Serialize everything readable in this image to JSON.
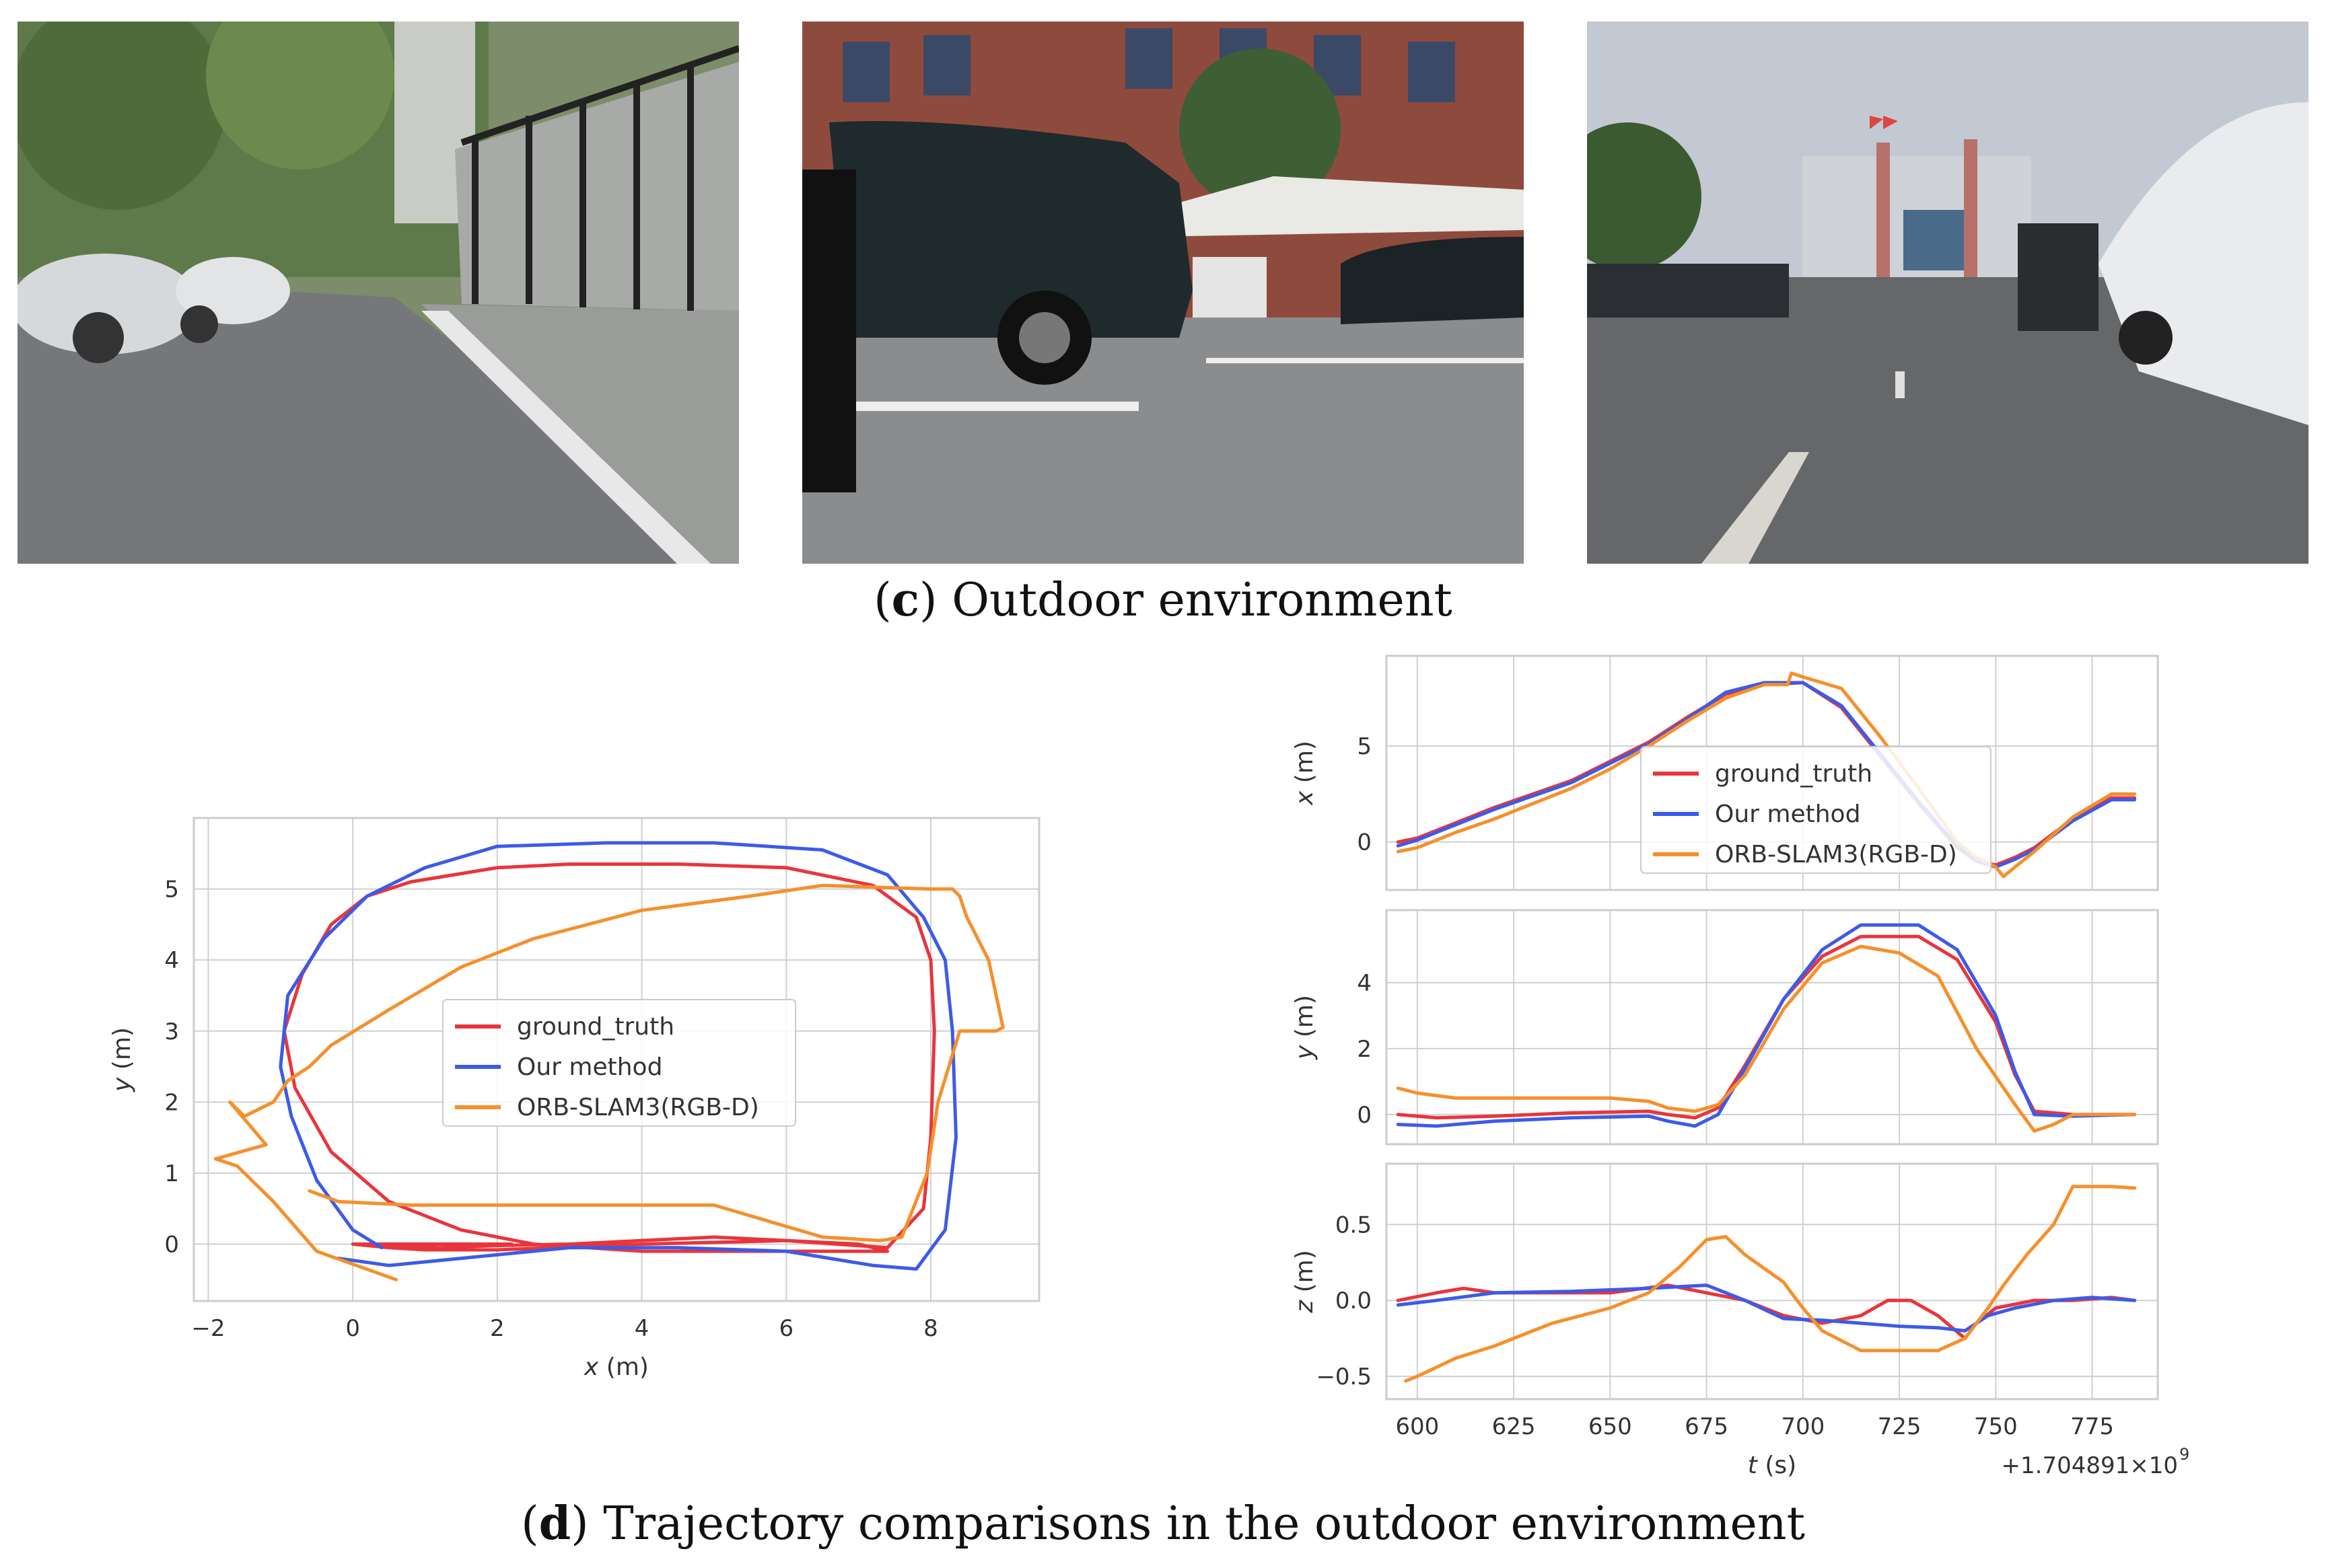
{
  "captions": {
    "c_letter": "c",
    "c_text": " Outdoor environment",
    "d_letter": "d",
    "d_text": " Trajectory comparisons in the outdoor environment"
  },
  "photos": [
    {
      "name": "outdoor-photo-sidewalk",
      "scene": "sidewalk with railing and parked cars"
    },
    {
      "name": "outdoor-photo-parking",
      "scene": "parked van in front of red brick building"
    },
    {
      "name": "outdoor-photo-road",
      "scene": "road towards building with flags, cars parked"
    }
  ],
  "colors": {
    "ground_truth": "#e8353c",
    "our_method": "#3c5be8",
    "orb_slam3": "#f5902c",
    "grid": "#d0d0d0",
    "frame": "#cccccc"
  },
  "chart_data": [
    {
      "type": "line",
      "id": "xy",
      "xlabel": "x (m)",
      "ylabel": "y (m)",
      "xlim": [
        -2.2,
        9.5
      ],
      "ylim": [
        -0.8,
        6.0
      ],
      "xticks": [
        -2,
        0,
        2,
        4,
        6,
        8
      ],
      "yticks": [
        0,
        1,
        2,
        3,
        4,
        5
      ],
      "grid": true,
      "legend_position": "center",
      "series": [
        {
          "name": "ground_truth",
          "key": "ground_truth",
          "x": [
            0.0,
            0.5,
            1.0,
            2.0,
            4.0,
            6.0,
            7.4,
            7.9,
            8.0,
            8.05,
            8.0,
            7.8,
            7.2,
            6.0,
            4.5,
            3.0,
            2.0,
            0.8,
            0.2,
            -0.3,
            -0.7,
            -0.95,
            -0.8,
            -0.3,
            0.5,
            1.5,
            2.5,
            4.0,
            5.5,
            6.8,
            7.4,
            7.0,
            6.0,
            5.0,
            4.0,
            3.0,
            2.0,
            1.2,
            0.5,
            0.0,
            2.2
          ],
          "y": [
            0.0,
            -0.05,
            -0.08,
            -0.08,
            0.0,
            0.05,
            -0.05,
            0.5,
            1.5,
            3.0,
            4.0,
            4.6,
            5.05,
            5.3,
            5.35,
            5.35,
            5.3,
            5.1,
            4.9,
            4.5,
            3.8,
            3.0,
            2.2,
            1.3,
            0.6,
            0.2,
            0.0,
            -0.1,
            -0.1,
            -0.1,
            -0.1,
            0.0,
            0.05,
            0.1,
            0.05,
            0.0,
            -0.02,
            -0.05,
            -0.03,
            0.0,
            0.0
          ]
        },
        {
          "name": "Our method",
          "key": "our_method",
          "x": [
            -0.2,
            0.5,
            1.5,
            3.0,
            4.5,
            6.0,
            7.2,
            7.8,
            8.2,
            8.35,
            8.3,
            8.2,
            7.9,
            7.4,
            6.5,
            5.0,
            3.5,
            2.0,
            1.0,
            0.2,
            -0.4,
            -0.9,
            -1.0,
            -0.85,
            -0.5,
            0.0,
            0.4
          ],
          "y": [
            -0.2,
            -0.3,
            -0.2,
            -0.05,
            -0.05,
            -0.1,
            -0.3,
            -0.35,
            0.2,
            1.5,
            3.0,
            4.0,
            4.6,
            5.2,
            5.55,
            5.65,
            5.65,
            5.6,
            5.3,
            4.9,
            4.3,
            3.5,
            2.5,
            1.8,
            0.9,
            0.2,
            -0.05
          ]
        },
        {
          "name": "ORB-SLAM3(RGB-D)",
          "key": "orb_slam3",
          "x": [
            -0.6,
            -0.2,
            0.8,
            1.5,
            3.0,
            5.0,
            6.5,
            7.3,
            7.6,
            7.95,
            8.1,
            8.4,
            8.9,
            9.0,
            8.8,
            8.5,
            8.4,
            8.3,
            8.0,
            7.4,
            6.5,
            5.5,
            4.0,
            2.5,
            1.5,
            0.5,
            -0.3,
            -0.6,
            -0.9,
            -1.1,
            -1.5,
            -1.7,
            -1.2,
            -1.9,
            -1.6,
            -1.1,
            -0.5,
            0.6
          ],
          "y": [
            0.75,
            0.6,
            0.55,
            0.55,
            0.55,
            0.55,
            0.1,
            0.05,
            0.1,
            1.0,
            2.0,
            3.0,
            3.0,
            3.05,
            4.0,
            4.6,
            4.9,
            5.0,
            5.0,
            5.02,
            5.05,
            4.9,
            4.7,
            4.3,
            3.9,
            3.3,
            2.8,
            2.5,
            2.3,
            2.0,
            1.8,
            2.0,
            1.4,
            1.2,
            1.1,
            0.6,
            -0.1,
            -0.5
          ]
        }
      ]
    },
    {
      "type": "line",
      "id": "ts-x",
      "ylabel": "x (m)",
      "xlim": [
        592,
        792
      ],
      "ylim": [
        -2.5,
        9.7
      ],
      "yticks": [
        0,
        5
      ],
      "grid": true,
      "legend_position": "center-right",
      "series": [
        {
          "name": "ground_truth",
          "key": "ground_truth",
          "x": [
            595,
            600,
            610,
            620,
            630,
            640,
            650,
            660,
            670,
            680,
            690,
            700,
            710,
            720,
            730,
            740,
            745,
            750,
            755,
            760,
            770,
            780,
            786
          ],
          "y": [
            0.0,
            0.2,
            1.0,
            1.8,
            2.5,
            3.2,
            4.2,
            5.2,
            6.5,
            7.7,
            8.2,
            8.3,
            7.0,
            4.5,
            2.0,
            -0.3,
            -1.0,
            -1.2,
            -0.8,
            -0.3,
            1.2,
            2.3,
            2.3
          ]
        },
        {
          "name": "Our method",
          "key": "our_method",
          "x": [
            595,
            600,
            610,
            620,
            630,
            640,
            650,
            660,
            670,
            680,
            690,
            700,
            710,
            720,
            730,
            740,
            745,
            750,
            755,
            760,
            770,
            780,
            786
          ],
          "y": [
            -0.2,
            0.1,
            0.9,
            1.7,
            2.4,
            3.1,
            4.1,
            5.1,
            6.4,
            7.8,
            8.3,
            8.3,
            7.1,
            4.6,
            2.1,
            -0.2,
            -1.0,
            -1.3,
            -0.9,
            -0.4,
            1.1,
            2.2,
            2.2
          ]
        },
        {
          "name": "ORB-SLAM3(RGB-D)",
          "key": "orb_slam3",
          "x": [
            595,
            600,
            610,
            620,
            630,
            640,
            650,
            660,
            670,
            680,
            690,
            696,
            697,
            700,
            710,
            720,
            730,
            740,
            745,
            750,
            752,
            755,
            760,
            770,
            780,
            786
          ],
          "y": [
            -0.5,
            -0.3,
            0.5,
            1.2,
            2.0,
            2.8,
            3.8,
            5.0,
            6.3,
            7.5,
            8.2,
            8.2,
            8.8,
            8.6,
            8.0,
            5.5,
            2.8,
            0.0,
            -0.8,
            -1.3,
            -1.8,
            -1.3,
            -0.5,
            1.3,
            2.5,
            2.5
          ]
        }
      ]
    },
    {
      "type": "line",
      "id": "ts-y",
      "ylabel": "y (m)",
      "xlim": [
        592,
        792
      ],
      "ylim": [
        -0.9,
        6.2
      ],
      "yticks": [
        0,
        2,
        4
      ],
      "grid": true,
      "series": [
        {
          "name": "ground_truth",
          "key": "ground_truth",
          "x": [
            595,
            605,
            620,
            640,
            660,
            665,
            672,
            678,
            685,
            695,
            705,
            715,
            730,
            740,
            750,
            755,
            760,
            770,
            786
          ],
          "y": [
            0.0,
            -0.1,
            -0.05,
            0.05,
            0.1,
            0.0,
            -0.1,
            0.2,
            1.5,
            3.5,
            4.8,
            5.4,
            5.4,
            4.7,
            2.8,
            1.2,
            0.1,
            0.0,
            0.0
          ]
        },
        {
          "name": "Our method",
          "key": "our_method",
          "x": [
            595,
            605,
            620,
            640,
            660,
            665,
            672,
            678,
            685,
            695,
            705,
            715,
            730,
            740,
            750,
            755,
            760,
            770,
            786
          ],
          "y": [
            -0.3,
            -0.35,
            -0.2,
            -0.1,
            -0.05,
            -0.2,
            -0.35,
            0.0,
            1.4,
            3.5,
            5.0,
            5.75,
            5.75,
            5.0,
            3.0,
            1.3,
            0.0,
            -0.05,
            0.0
          ]
        },
        {
          "name": "ORB-SLAM3(RGB-D)",
          "key": "orb_slam3",
          "x": [
            595,
            600,
            610,
            630,
            650,
            660,
            665,
            672,
            678,
            685,
            695,
            705,
            715,
            725,
            735,
            745,
            755,
            760,
            765,
            770,
            786
          ],
          "y": [
            0.8,
            0.65,
            0.5,
            0.5,
            0.5,
            0.4,
            0.2,
            0.1,
            0.3,
            1.2,
            3.2,
            4.6,
            5.1,
            4.9,
            4.2,
            2.0,
            0.3,
            -0.5,
            -0.3,
            0.0,
            0.0
          ]
        }
      ]
    },
    {
      "type": "line",
      "id": "ts-z",
      "ylabel": "z (m)",
      "xlabel": "t (s)",
      "offset_label": "+1.704891×10",
      "offset_exp": "9",
      "xlim": [
        592,
        792
      ],
      "ylim": [
        -0.65,
        0.9
      ],
      "xticks": [
        600,
        625,
        650,
        675,
        700,
        725,
        750,
        775
      ],
      "yticks": [
        -0.5,
        0.0,
        0.5
      ],
      "grid": true,
      "series": [
        {
          "name": "ground_truth",
          "key": "ground_truth",
          "x": [
            595,
            605,
            612,
            620,
            635,
            650,
            665,
            675,
            685,
            695,
            705,
            715,
            722,
            728,
            735,
            742,
            745,
            750,
            760,
            770,
            780,
            786
          ],
          "y": [
            0.0,
            0.05,
            0.08,
            0.05,
            0.05,
            0.05,
            0.1,
            0.05,
            0.0,
            -0.1,
            -0.15,
            -0.1,
            0.0,
            0.0,
            -0.1,
            -0.25,
            -0.15,
            -0.05,
            0.0,
            0.0,
            0.02,
            0.0
          ]
        },
        {
          "name": "Our method",
          "key": "our_method",
          "x": [
            595,
            605,
            620,
            640,
            660,
            675,
            685,
            695,
            705,
            715,
            725,
            735,
            742,
            748,
            755,
            765,
            775,
            786
          ],
          "y": [
            -0.03,
            0.0,
            0.05,
            0.06,
            0.08,
            0.1,
            0.0,
            -0.12,
            -0.13,
            -0.15,
            -0.17,
            -0.18,
            -0.2,
            -0.1,
            -0.05,
            0.0,
            0.02,
            0.0
          ]
        },
        {
          "name": "ORB-SLAM3(RGB-D)",
          "key": "orb_slam3",
          "x": [
            597,
            600,
            610,
            620,
            635,
            650,
            660,
            668,
            675,
            680,
            685,
            695,
            697,
            700,
            705,
            715,
            725,
            735,
            742,
            748,
            752,
            758,
            765,
            770,
            780,
            786
          ],
          "y": [
            -0.53,
            -0.5,
            -0.38,
            -0.3,
            -0.15,
            -0.05,
            0.05,
            0.22,
            0.4,
            0.42,
            0.3,
            0.12,
            0.05,
            -0.05,
            -0.2,
            -0.33,
            -0.33,
            -0.33,
            -0.25,
            -0.05,
            0.1,
            0.3,
            0.5,
            0.75,
            0.75,
            0.74
          ]
        }
      ]
    }
  ]
}
